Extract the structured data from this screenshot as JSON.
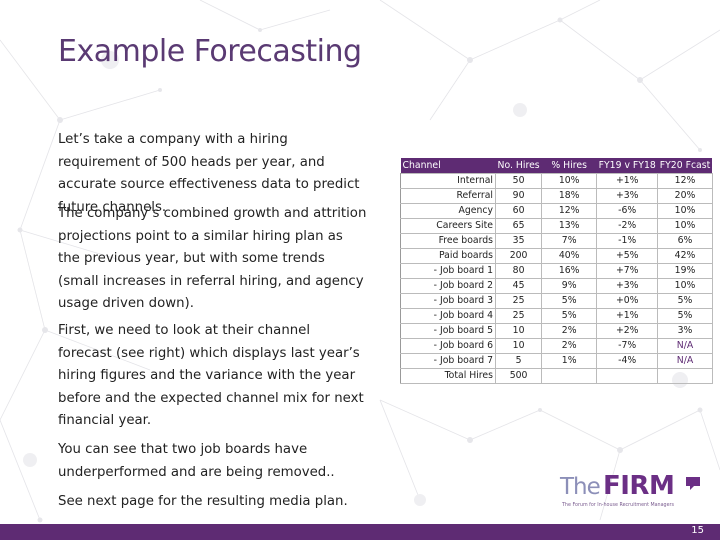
{
  "title": "Example Forecasting",
  "paragraphs": {
    "p1": "Let’s take a company with a hiring requirement of 500 heads per year, and accurate source effectiveness data to predict future channels.",
    "p2": "The company’s combined growth and attrition projections point to a similar hiring plan as the previous year, but with some trends (small increases in referral hiring, and agency usage driven down).",
    "p3": "First, we need to look at their channel forecast (see right) which displays last year’s hiring figures and the variance with the year before and the expected channel mix for next financial year.",
    "p4": "You can see that two job boards have underperformed and are being removed..",
    "p5": "See next page for the resulting media plan."
  },
  "table": {
    "headers": [
      "Channel",
      "No. Hires",
      "% Hires",
      "FY19 v FY18",
      "FY20 Fcast"
    ],
    "rows": [
      [
        "Internal",
        "50",
        "10%",
        "+1%",
        "12%"
      ],
      [
        "Referral",
        "90",
        "18%",
        "+3%",
        "20%"
      ],
      [
        "Agency",
        "60",
        "12%",
        "-6%",
        "10%"
      ],
      [
        "Careers Site",
        "65",
        "13%",
        "-2%",
        "10%"
      ],
      [
        "Free boards",
        "35",
        "7%",
        "-1%",
        "6%"
      ],
      [
        "Paid boards",
        "200",
        "40%",
        "+5%",
        "42%"
      ],
      [
        "- Job board 1",
        "80",
        "16%",
        "+7%",
        "19%"
      ],
      [
        "- Job board 2",
        "45",
        "9%",
        "+3%",
        "10%"
      ],
      [
        "- Job board 3",
        "25",
        "5%",
        "+0%",
        "5%"
      ],
      [
        "- Job board 4",
        "25",
        "5%",
        "+1%",
        "5%"
      ],
      [
        "- Job board 5",
        "10",
        "2%",
        "+2%",
        "3%"
      ],
      [
        "- Job board 6",
        "10",
        "2%",
        "-7%",
        "N/A"
      ],
      [
        "- Job board 7",
        "5",
        "1%",
        "-4%",
        "N/A"
      ],
      [
        "Total Hires",
        "500",
        "",
        "",
        ""
      ]
    ],
    "colors": {
      "header_bg": "#5e2b73",
      "header_text": "#ffffff",
      "na_text": "#5e2b73"
    }
  },
  "logo": {
    "the": "The",
    "firm": "FIRM",
    "tagline": "The Forum for In-house Recruitment Managers",
    "colors": {
      "the": "#8c8fb8",
      "firm": "#6b2f85"
    }
  },
  "footer": {
    "page_number": "15",
    "bar_color": "#5e2b73"
  },
  "theme": {
    "title_color": "#5a3a73"
  }
}
